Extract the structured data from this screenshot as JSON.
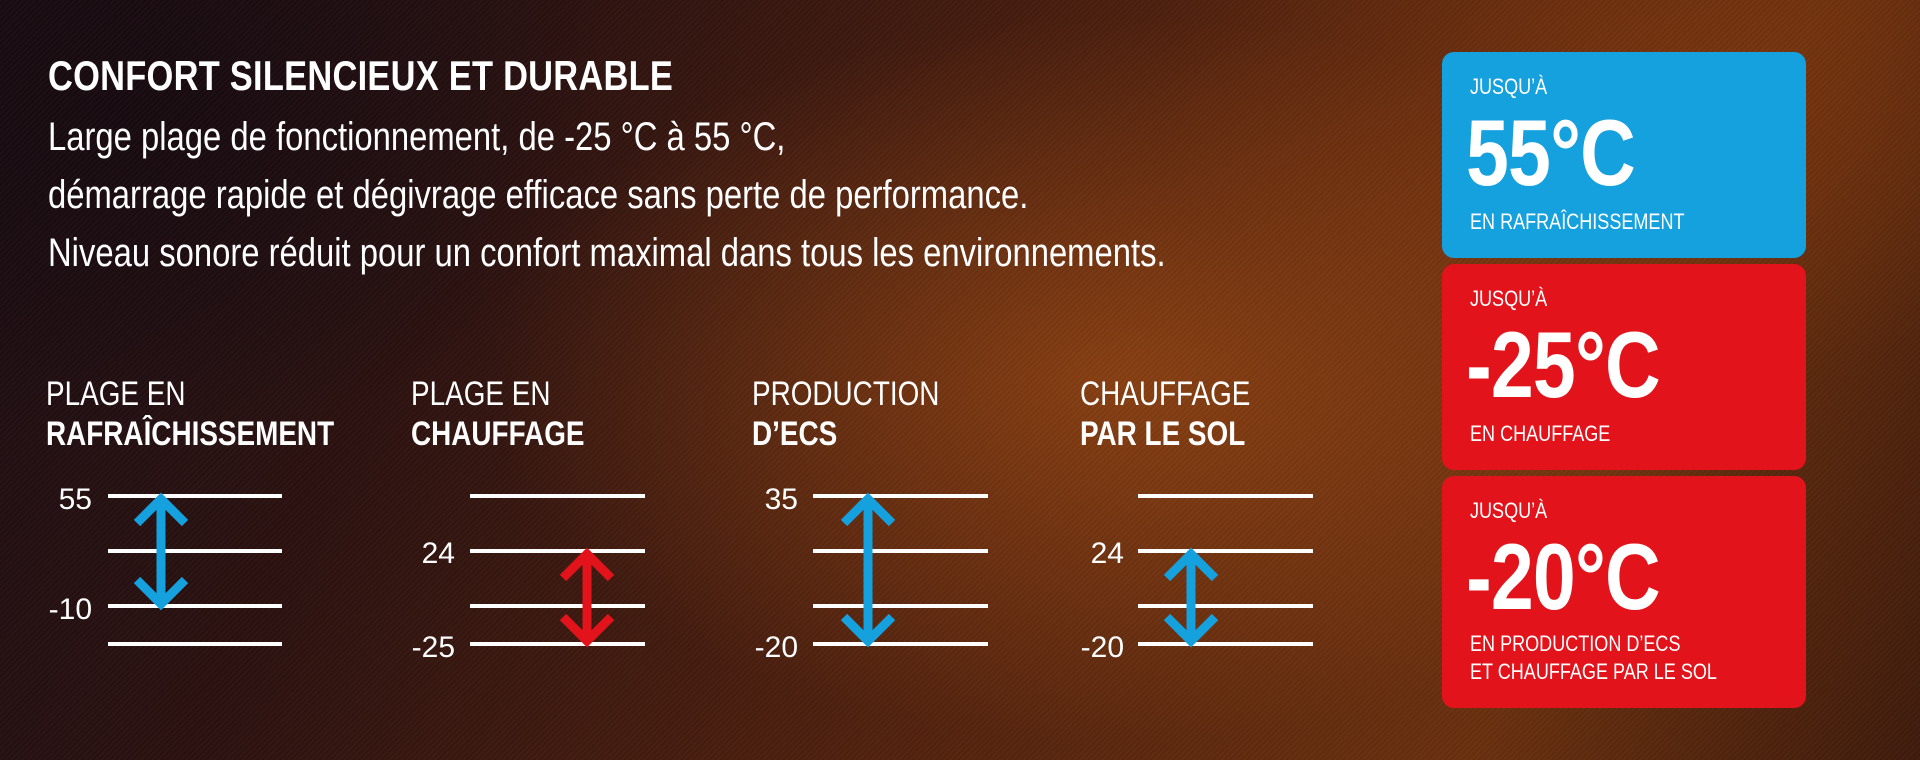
{
  "header": {
    "title": "CONFORT SILENCIEUX ET DURABLE",
    "lines": [
      "Large plage de fonctionnement, de -25 °C à 55 °C,",
      "démarrage rapide et dégivrage efficace sans perte de performance.",
      "Niveau sonore réduit pour un confort maximal dans tous les environnements."
    ]
  },
  "ranges": [
    {
      "label_line1": "PLAGE EN",
      "label_line2": "RAFRAÎCHISSEMENT",
      "top_value": "55",
      "bottom_value": "-10",
      "arrow_color": "#15a0de"
    },
    {
      "label_line1": "PLAGE EN",
      "label_line2": "CHAUFFAGE",
      "top_value": "24",
      "bottom_value": "-25",
      "arrow_color": "#e3131b"
    },
    {
      "label_line1": "PRODUCTION",
      "label_line2": "D’ECS",
      "top_value": "35",
      "bottom_value": "-20",
      "arrow_color": "#15a0de"
    },
    {
      "label_line1": "CHAUFFAGE",
      "label_line2": "PAR LE SOL",
      "top_value": "24",
      "bottom_value": "-20",
      "arrow_color": "#15a0de"
    }
  ],
  "cards": [
    {
      "overline": "JUSQU’À",
      "value": "55°C",
      "caption_lines": [
        "EN RAFRAÎCHISSEMENT"
      ],
      "color": "#15a0de"
    },
    {
      "overline": "JUSQU’À",
      "value": "-25°C",
      "caption_lines": [
        "EN CHAUFFAGE"
      ],
      "color": "#e3131b"
    },
    {
      "overline": "JUSQU’À",
      "value": "-20°C",
      "caption_lines": [
        "EN PRODUCTION D’ECS",
        "ET CHAUFFAGE PAR LE SOL"
      ],
      "color": "#e3131b"
    }
  ]
}
